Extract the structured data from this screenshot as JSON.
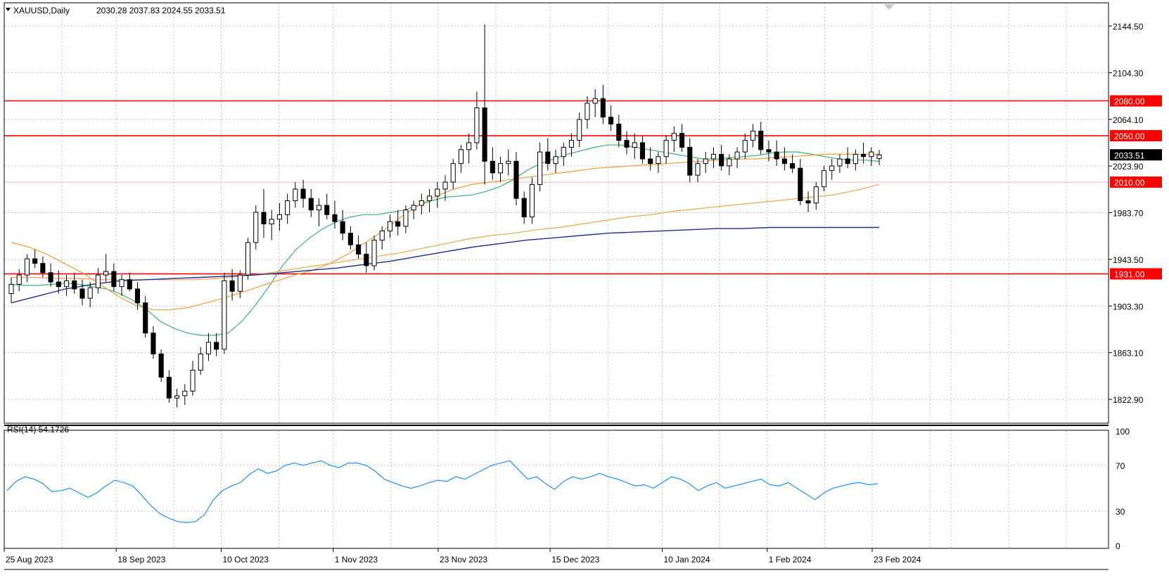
{
  "header": {
    "symbol_label": "XAUUSD,Daily",
    "ohlc_text": "2030.28 2037.83 2024.55 2033.51"
  },
  "rsi_legend": "RSI(14) 54.1726",
  "colors": {
    "bull_candle": "#ffffff",
    "bear_candle": "#000000",
    "ma_fast": "#3cb371",
    "ma_mid": "#f39c34",
    "ma_slow": "#1f2f8f",
    "level_line": "#ff0000",
    "rsi_line": "#1e90ff",
    "grid": "#c0c0c0"
  },
  "chart_data": [
    {
      "type": "candlestick",
      "symbol": "XAUUSD",
      "timeframe": "Daily",
      "last": {
        "open": 2030.28,
        "high": 2037.83,
        "low": 2024.55,
        "close": 2033.51
      },
      "ylim": [
        1800,
        2165
      ],
      "y_ticks": [
        "2144.50",
        "2104.30",
        "2064.10",
        "2023.90",
        "1983.70",
        "1943.50",
        "1903.30",
        "1863.10",
        "1822.90"
      ],
      "x_ticks": [
        "25 Aug 2023",
        "18 Sep 2023",
        "10 Oct 2023",
        "1 Nov 2023",
        "23 Nov 2023",
        "15 Dec 2023",
        "10 Jan 2024",
        "1 Feb 2024",
        "23 Feb 2024"
      ],
      "grid": true,
      "price_tags": [
        "2080.00",
        "2050.00",
        "2033.51",
        "2010.00",
        "1931.00"
      ],
      "levels": [
        {
          "value": 2080,
          "label": "2080.00"
        },
        {
          "value": 2050,
          "label": "2050.00"
        },
        {
          "value": 2010,
          "label": "2010.00"
        },
        {
          "value": 1931,
          "label": "1931.00"
        }
      ],
      "candles": [
        [
          1914,
          1928,
          1906,
          1922
        ],
        [
          1922,
          1935,
          1916,
          1930
        ],
        [
          1930,
          1948,
          1924,
          1944
        ],
        [
          1944,
          1952,
          1936,
          1940
        ],
        [
          1940,
          1946,
          1928,
          1932
        ],
        [
          1932,
          1940,
          1920,
          1924
        ],
        [
          1924,
          1934,
          1914,
          1920
        ],
        [
          1920,
          1930,
          1912,
          1925
        ],
        [
          1925,
          1932,
          1914,
          1918
        ],
        [
          1918,
          1926,
          1904,
          1910
        ],
        [
          1910,
          1924,
          1902,
          1919
        ],
        [
          1919,
          1936,
          1914,
          1930
        ],
        [
          1930,
          1948,
          1924,
          1933
        ],
        [
          1933,
          1940,
          1916,
          1920
        ],
        [
          1920,
          1930,
          1912,
          1926
        ],
        [
          1926,
          1932,
          1916,
          1918
        ],
        [
          1918,
          1924,
          1900,
          1906
        ],
        [
          1906,
          1912,
          1876,
          1880
        ],
        [
          1880,
          1886,
          1858,
          1862
        ],
        [
          1862,
          1866,
          1838,
          1842
        ],
        [
          1842,
          1848,
          1820,
          1824
        ],
        [
          1824,
          1832,
          1816,
          1826
        ],
        [
          1826,
          1836,
          1818,
          1830
        ],
        [
          1830,
          1856,
          1826,
          1848
        ],
        [
          1848,
          1868,
          1844,
          1862
        ],
        [
          1862,
          1880,
          1856,
          1872
        ],
        [
          1872,
          1880,
          1860,
          1866
        ],
        [
          1866,
          1932,
          1862,
          1925
        ],
        [
          1925,
          1935,
          1908,
          1916
        ],
        [
          1916,
          1934,
          1910,
          1930
        ],
        [
          1930,
          1962,
          1926,
          1958
        ],
        [
          1958,
          1990,
          1952,
          1984
        ],
        [
          1984,
          2004,
          1962,
          1974
        ],
        [
          1974,
          1986,
          1960,
          1978
        ],
        [
          1978,
          1992,
          1968,
          1982
        ],
        [
          1982,
          2000,
          1974,
          1994
        ],
        [
          1994,
          2010,
          1988,
          2004
        ],
        [
          2004,
          2012,
          1988,
          1996
        ],
        [
          1996,
          2004,
          1980,
          1986
        ],
        [
          1986,
          1996,
          1972,
          1990
        ],
        [
          1990,
          2000,
          1978,
          1982
        ],
        [
          1982,
          1994,
          1970,
          1976
        ],
        [
          1976,
          1986,
          1960,
          1966
        ],
        [
          1966,
          1972,
          1952,
          1956
        ],
        [
          1956,
          1964,
          1944,
          1948
        ],
        [
          1948,
          1958,
          1932,
          1938
        ],
        [
          1938,
          1964,
          1934,
          1960
        ],
        [
          1960,
          1972,
          1952,
          1968
        ],
        [
          1968,
          1982,
          1962,
          1976
        ],
        [
          1976,
          1986,
          1964,
          1972
        ],
        [
          1972,
          1990,
          1966,
          1986
        ],
        [
          1986,
          1994,
          1978,
          1990
        ],
        [
          1990,
          2000,
          1982,
          1994
        ],
        [
          1994,
          2004,
          1984,
          1998
        ],
        [
          1998,
          2010,
          1988,
          2004
        ],
        [
          2004,
          2016,
          1994,
          2010
        ],
        [
          2010,
          2030,
          2004,
          2026
        ],
        [
          2026,
          2042,
          2018,
          2038
        ],
        [
          2038,
          2052,
          2026,
          2044
        ],
        [
          2044,
          2088,
          2038,
          2074
        ],
        [
          2074,
          2146,
          2008,
          2028
        ],
        [
          2028,
          2040,
          2012,
          2018
        ],
        [
          2018,
          2032,
          2010,
          2026
        ],
        [
          2026,
          2038,
          2016,
          2028
        ],
        [
          2028,
          2036,
          1990,
          1996
        ],
        [
          1996,
          2002,
          1974,
          1980
        ],
        [
          1980,
          2014,
          1974,
          2008
        ],
        [
          2008,
          2044,
          2002,
          2036
        ],
        [
          2036,
          2048,
          2020,
          2026
        ],
        [
          2026,
          2038,
          2018,
          2032
        ],
        [
          2032,
          2044,
          2024,
          2040
        ],
        [
          2040,
          2052,
          2032,
          2046
        ],
        [
          2046,
          2070,
          2040,
          2064
        ],
        [
          2064,
          2084,
          2056,
          2078
        ],
        [
          2078,
          2090,
          2066,
          2082
        ],
        [
          2082,
          2094,
          2060,
          2066
        ],
        [
          2066,
          2076,
          2054,
          2060
        ],
        [
          2060,
          2068,
          2040,
          2046
        ],
        [
          2046,
          2054,
          2034,
          2040
        ],
        [
          2040,
          2052,
          2030,
          2044
        ],
        [
          2044,
          2050,
          2026,
          2030
        ],
        [
          2030,
          2040,
          2020,
          2026
        ],
        [
          2026,
          2036,
          2018,
          2032
        ],
        [
          2032,
          2050,
          2026,
          2046
        ],
        [
          2046,
          2058,
          2036,
          2052
        ],
        [
          2052,
          2060,
          2036,
          2040
        ],
        [
          2040,
          2048,
          2010,
          2016
        ],
        [
          2016,
          2030,
          2010,
          2026
        ],
        [
          2026,
          2036,
          2018,
          2030
        ],
        [
          2030,
          2040,
          2022,
          2034
        ],
        [
          2034,
          2042,
          2020,
          2024
        ],
        [
          2024,
          2034,
          2016,
          2030
        ],
        [
          2030,
          2040,
          2022,
          2036
        ],
        [
          2036,
          2052,
          2030,
          2046
        ],
        [
          2046,
          2060,
          2040,
          2054
        ],
        [
          2054,
          2062,
          2034,
          2038
        ],
        [
          2038,
          2046,
          2028,
          2036
        ],
        [
          2036,
          2046,
          2024,
          2030
        ],
        [
          2030,
          2040,
          2020,
          2026
        ],
        [
          2026,
          2034,
          2018,
          2022
        ],
        [
          2022,
          2030,
          1990,
          1994
        ],
        [
          1994,
          2002,
          1984,
          1992
        ],
        [
          1992,
          2010,
          1986,
          2006
        ],
        [
          2006,
          2024,
          2002,
          2020
        ],
        [
          2020,
          2030,
          2012,
          2024
        ],
        [
          2024,
          2034,
          2018,
          2030
        ],
        [
          2030,
          2040,
          2022,
          2026
        ],
        [
          2026,
          2038,
          2020,
          2034
        ],
        [
          2034,
          2044,
          2026,
          2032
        ],
        [
          2032,
          2040,
          2024,
          2036
        ],
        [
          2030.28,
          2037.83,
          2024.55,
          2033.51
        ]
      ],
      "ma_fast": [
        1922,
        1921,
        1921,
        1922,
        1923,
        1922,
        1920,
        1918,
        1914,
        1908,
        1900,
        1890,
        1884,
        1880,
        1878,
        1878,
        1880,
        1890,
        1904,
        1920,
        1938,
        1952,
        1962,
        1970,
        1976,
        1980,
        1982,
        1982,
        1984,
        1986,
        1990,
        1994,
        1997,
        1998,
        1999,
        2002,
        2006,
        2012,
        2020,
        2026,
        2030,
        2034,
        2037,
        2040,
        2042,
        2042,
        2040,
        2038,
        2036,
        2034,
        2032,
        2030,
        2030,
        2031,
        2032,
        2033,
        2035,
        2036,
        2036,
        2034,
        2032,
        2030,
        2029,
        2029,
        2028
      ],
      "ma_mid": [
        1958,
        1954,
        1948,
        1940,
        1932,
        1922,
        1912,
        1904,
        1900,
        1900,
        1902,
        1906,
        1910,
        1915,
        1920,
        1925,
        1930,
        1934,
        1940,
        1948,
        1958,
        1968,
        1980,
        1990,
        1998,
        2004,
        2008,
        2010,
        2012,
        2014,
        2016,
        2018,
        2020,
        2022,
        2023,
        2024,
        2025,
        2026,
        2027,
        2028,
        2029,
        2030,
        2030,
        2031,
        2032,
        2033,
        2034,
        2034,
        2034,
        2034
      ],
      "ma_ema": [
        1928,
        1928,
        1927,
        1927,
        1926,
        1926,
        1926,
        1926,
        1926,
        1927,
        1929,
        1931,
        1934,
        1937,
        1940,
        1943,
        1946,
        1949,
        1953,
        1957,
        1961,
        1964,
        1966,
        1969,
        1971,
        1974,
        1977,
        1980,
        1982,
        1985,
        1987,
        1989,
        1991,
        1993,
        1995,
        1997,
        1999,
        2003,
        2008
      ],
      "ma_slow": [
        1906,
        1912,
        1918,
        1922,
        1925,
        1926,
        1927,
        1928,
        1929,
        1930,
        1932,
        1934,
        1936,
        1939,
        1942,
        1946,
        1950,
        1954,
        1957,
        1960,
        1962,
        1964,
        1966,
        1967,
        1968,
        1969,
        1970,
        1970,
        1971,
        1971,
        1971,
        1971,
        1971
      ],
      "rsi": {
        "label": "RSI(14) 54.1726",
        "ylim": [
          0,
          100
        ],
        "y_ticks": [
          "100",
          "70",
          "30",
          "0"
        ],
        "values": [
          48,
          56,
          60,
          58,
          54,
          47,
          48,
          50,
          46,
          42,
          46,
          52,
          57,
          55,
          52,
          44,
          35,
          28,
          24,
          21,
          20,
          21,
          27,
          40,
          48,
          52,
          55,
          62,
          67,
          63,
          65,
          70,
          72,
          70,
          72,
          74,
          70,
          68,
          72,
          72,
          70,
          65,
          58,
          55,
          52,
          50,
          52,
          55,
          57,
          56,
          60,
          58,
          62,
          66,
          70,
          72,
          74,
          66,
          58,
          60,
          54,
          49,
          56,
          60,
          58,
          60,
          63,
          60,
          58,
          55,
          52,
          53,
          50,
          55,
          60,
          58,
          54,
          48,
          52,
          55,
          50,
          52,
          54,
          56,
          58,
          53,
          52,
          55,
          50,
          45,
          40,
          46,
          50,
          52,
          54,
          55,
          53,
          54
        ]
      }
    }
  ]
}
